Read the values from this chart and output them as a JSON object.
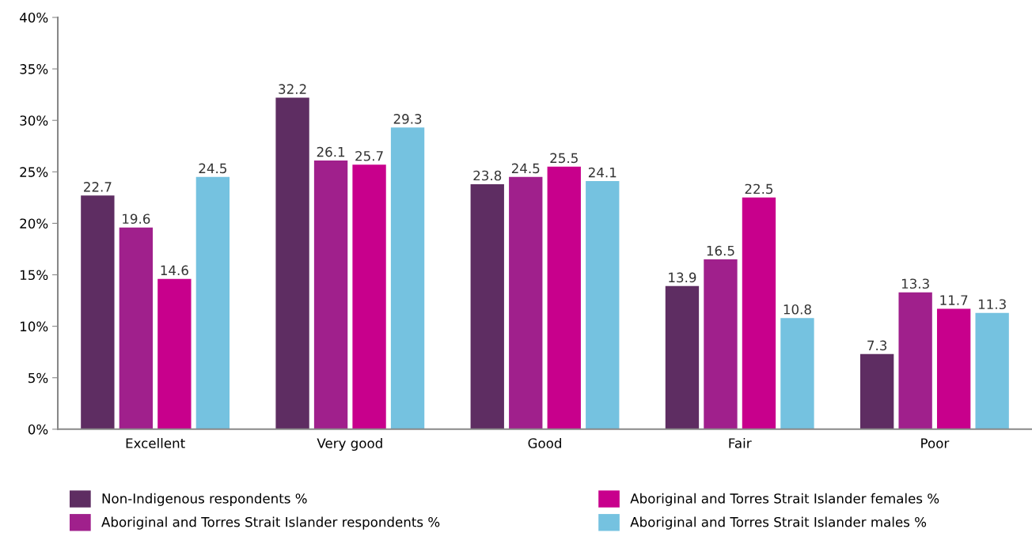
{
  "chart_data": {
    "type": "bar",
    "categories": [
      "Excellent",
      "Very good",
      "Good",
      "Fair",
      "Poor"
    ],
    "series": [
      {
        "name": "Non-Indigenous respondents %",
        "color": "#5e2d62",
        "values": [
          22.7,
          32.2,
          23.8,
          13.9,
          7.3
        ]
      },
      {
        "name": "Aboriginal and Torres Strait Islander respondents %",
        "color": "#a0208c",
        "values": [
          19.6,
          26.1,
          24.5,
          16.5,
          13.3
        ]
      },
      {
        "name": "Aboriginal and Torres Strait Islander females %",
        "color": "#c8008c",
        "values": [
          14.6,
          25.7,
          25.5,
          22.5,
          11.7
        ]
      },
      {
        "name": "Aboriginal and Torres Strait Islander males %",
        "color": "#75c2e0",
        "values": [
          24.5,
          29.3,
          24.1,
          10.8,
          11.3
        ]
      }
    ],
    "ylim": [
      0,
      40
    ],
    "yticks": [
      {
        "value": 0,
        "label": "0%"
      },
      {
        "value": 5,
        "label": "5%"
      },
      {
        "value": 10,
        "label": "10%"
      },
      {
        "value": 15,
        "label": "15%"
      },
      {
        "value": 20,
        "label": "20%"
      },
      {
        "value": 25,
        "label": "25%"
      },
      {
        "value": 30,
        "label": "30%"
      },
      {
        "value": 35,
        "label": "35%"
      },
      {
        "value": 40,
        "label": "40%"
      }
    ],
    "data_labels": true,
    "grid": false,
    "legend": "bottom"
  }
}
